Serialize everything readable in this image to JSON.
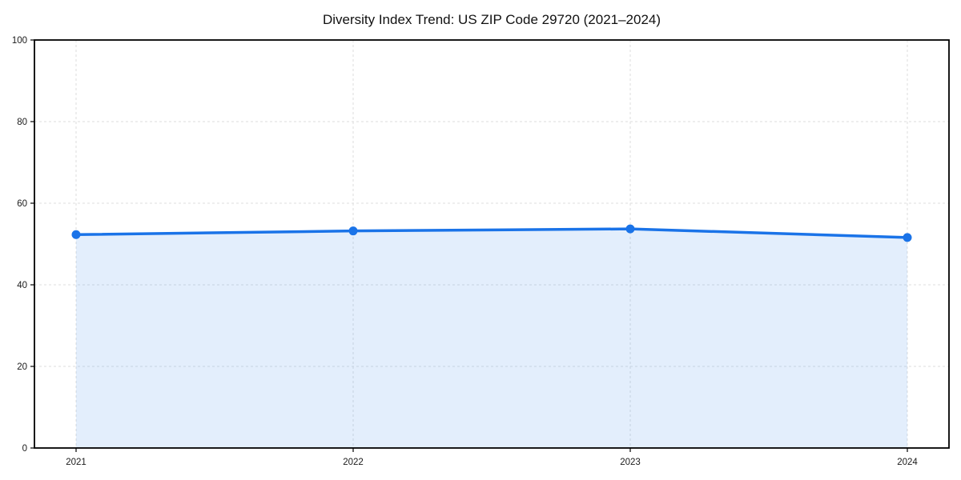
{
  "chart_data": {
    "type": "line",
    "title": "Diversity Index Trend: US ZIP Code 29720 (2021–2024)",
    "x": [
      "2021",
      "2022",
      "2023",
      "2024"
    ],
    "values": [
      52.3,
      53.2,
      53.7,
      51.6
    ],
    "xlabel": "",
    "ylabel": "",
    "ylim": [
      0,
      100
    ],
    "yticks": [
      0,
      20,
      40,
      60,
      80,
      100
    ],
    "grid": "dashed",
    "legend": "none",
    "colors": {
      "line": "#1a73e8",
      "marker": "#1a73e8",
      "area_fill": "rgba(26,115,232,0.12)",
      "spine": "#000000",
      "gridline": "#dedede",
      "text": "#111111"
    },
    "style": {
      "marker_shape": "circle",
      "area_under_line": true
    }
  }
}
